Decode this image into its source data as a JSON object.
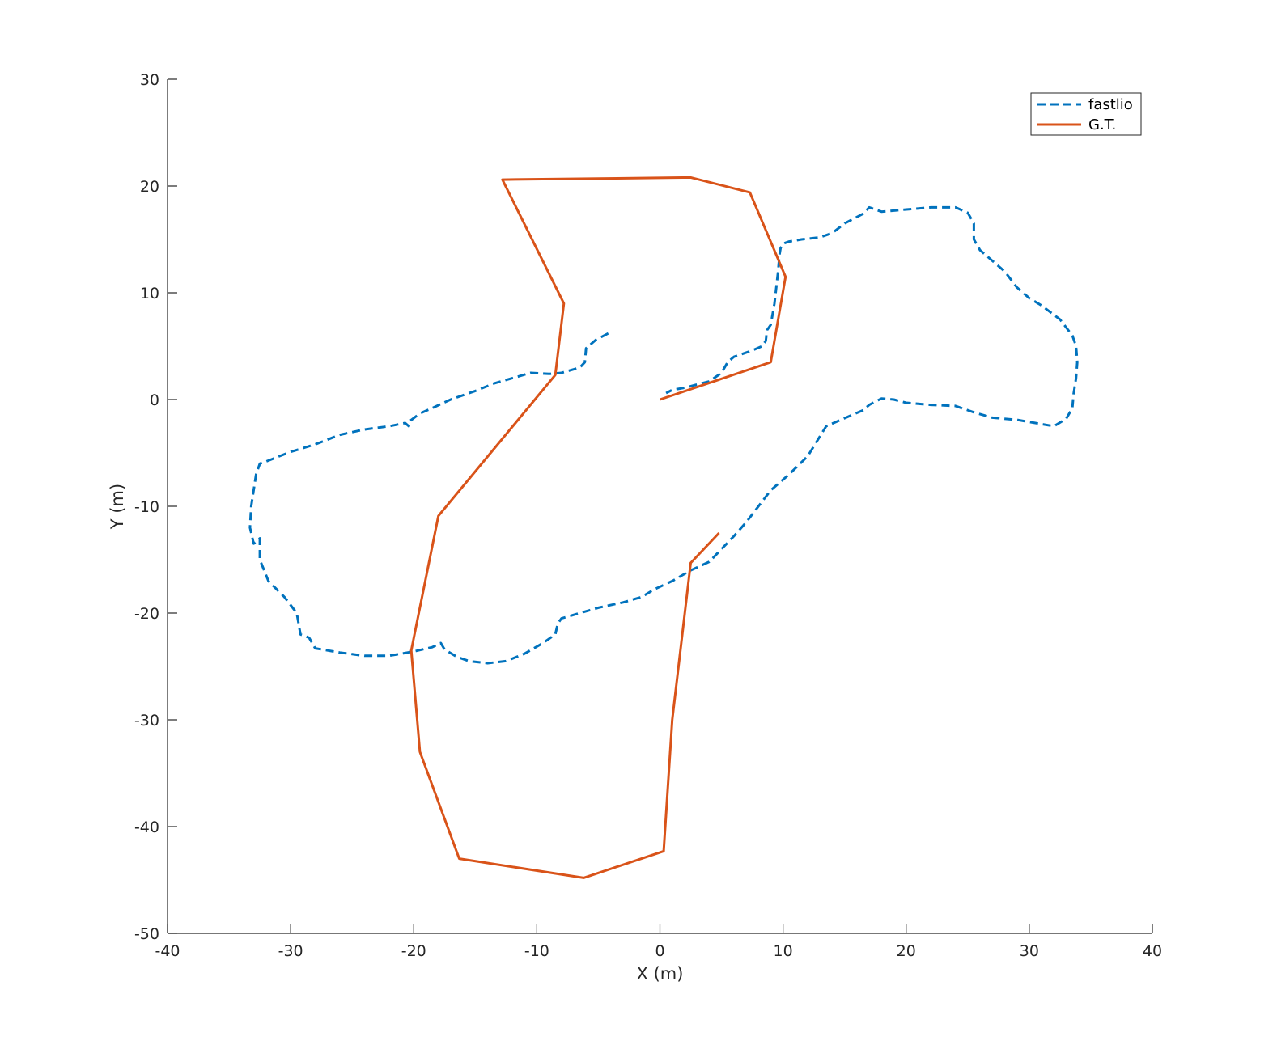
{
  "chart_data": {
    "type": "line",
    "title": "",
    "xlabel": "X (m)",
    "ylabel": "Y (m)",
    "xlim": [
      -40,
      40
    ],
    "ylim": [
      -50,
      30
    ],
    "xticks": [
      -40,
      -30,
      -20,
      -10,
      0,
      10,
      20,
      30,
      40
    ],
    "yticks": [
      -50,
      -40,
      -30,
      -20,
      -10,
      0,
      10,
      20,
      30
    ],
    "grid": false,
    "legend_position": "top-right",
    "series": [
      {
        "name": "fastlio",
        "style": "dashed",
        "color": "#0072BD",
        "points": [
          [
            -4.2,
            6.2
          ],
          [
            -5.2,
            5.6
          ],
          [
            -6.0,
            4.8
          ],
          [
            -6.1,
            3.5
          ],
          [
            -6.5,
            3.0
          ],
          [
            -8.0,
            2.5
          ],
          [
            -9.0,
            2.4
          ],
          [
            -10.5,
            2.5
          ],
          [
            -12.0,
            2.0
          ],
          [
            -13.5,
            1.5
          ],
          [
            -15.0,
            0.8
          ],
          [
            -17.0,
            0.0
          ],
          [
            -18.5,
            -0.8
          ],
          [
            -19.5,
            -1.3
          ],
          [
            -20.3,
            -2.0
          ],
          [
            -20.4,
            -2.5
          ],
          [
            -20.7,
            -2.2
          ],
          [
            -22.0,
            -2.5
          ],
          [
            -24.0,
            -2.8
          ],
          [
            -26.0,
            -3.3
          ],
          [
            -28.0,
            -4.2
          ],
          [
            -30.0,
            -4.9
          ],
          [
            -32.0,
            -5.8
          ],
          [
            -32.5,
            -6.0
          ],
          [
            -32.8,
            -7.0
          ],
          [
            -33.2,
            -10.0
          ],
          [
            -33.3,
            -12.0
          ],
          [
            -33.0,
            -13.5
          ],
          [
            -32.5,
            -13.0
          ],
          [
            -32.5,
            -15.0
          ],
          [
            -31.8,
            -17.0
          ],
          [
            -30.5,
            -18.5
          ],
          [
            -29.5,
            -20.0
          ],
          [
            -29.2,
            -22.0
          ],
          [
            -28.5,
            -22.3
          ],
          [
            -28.0,
            -23.3
          ],
          [
            -26.0,
            -23.7
          ],
          [
            -24.0,
            -24.0
          ],
          [
            -22.0,
            -24.0
          ],
          [
            -20.0,
            -23.6
          ],
          [
            -18.5,
            -23.2
          ],
          [
            -17.8,
            -22.8
          ],
          [
            -17.5,
            -23.4
          ],
          [
            -16.5,
            -24.1
          ],
          [
            -15.5,
            -24.5
          ],
          [
            -14.0,
            -24.7
          ],
          [
            -12.5,
            -24.5
          ],
          [
            -11.0,
            -23.8
          ],
          [
            -9.5,
            -22.8
          ],
          [
            -8.5,
            -22.0
          ],
          [
            -8.3,
            -21.0
          ],
          [
            -8.0,
            -20.5
          ],
          [
            -6.5,
            -20.0
          ],
          [
            -5.0,
            -19.5
          ],
          [
            -3.0,
            -19.0
          ],
          [
            -1.5,
            -18.5
          ],
          [
            -0.5,
            -17.8
          ],
          [
            1.0,
            -17.0
          ],
          [
            2.5,
            -16.0
          ],
          [
            4.0,
            -15.2
          ],
          [
            5.0,
            -14.0
          ],
          [
            6.0,
            -12.8
          ],
          [
            7.0,
            -11.5
          ],
          [
            8.0,
            -10.0
          ],
          [
            9.0,
            -8.5
          ],
          [
            10.5,
            -7.0
          ],
          [
            12.0,
            -5.3
          ],
          [
            13.5,
            -2.5
          ],
          [
            15.5,
            -1.5
          ],
          [
            16.5,
            -1.0
          ],
          [
            17.0,
            -0.5
          ],
          [
            18.0,
            0.1
          ],
          [
            19.0,
            0.0
          ],
          [
            20.0,
            -0.3
          ],
          [
            22.0,
            -0.5
          ],
          [
            24.0,
            -0.6
          ],
          [
            25.5,
            -1.2
          ],
          [
            27.0,
            -1.7
          ],
          [
            29.0,
            -1.9
          ],
          [
            30.5,
            -2.2
          ],
          [
            32.0,
            -2.5
          ],
          [
            33.0,
            -1.8
          ],
          [
            33.5,
            -0.8
          ],
          [
            33.6,
            0.5
          ],
          [
            33.8,
            2.0
          ],
          [
            33.9,
            3.5
          ],
          [
            33.8,
            5.0
          ],
          [
            33.5,
            6.0
          ],
          [
            32.5,
            7.5
          ],
          [
            31.0,
            8.8
          ],
          [
            30.0,
            9.5
          ],
          [
            29.0,
            10.5
          ],
          [
            28.0,
            12.0
          ],
          [
            27.0,
            13.0
          ],
          [
            26.0,
            14.0
          ],
          [
            25.5,
            15.0
          ],
          [
            25.5,
            16.5
          ],
          [
            25.0,
            17.5
          ],
          [
            24.0,
            18.0
          ],
          [
            22.0,
            18.0
          ],
          [
            20.0,
            17.8
          ],
          [
            18.0,
            17.6
          ],
          [
            17.0,
            18.0
          ],
          [
            16.5,
            17.4
          ],
          [
            15.0,
            16.5
          ],
          [
            14.0,
            15.6
          ],
          [
            13.0,
            15.2
          ],
          [
            11.5,
            15.0
          ],
          [
            10.5,
            14.8
          ],
          [
            10.0,
            14.6
          ],
          [
            9.8,
            14.2
          ],
          [
            9.7,
            13.5
          ],
          [
            9.6,
            12.0
          ],
          [
            9.5,
            11.0
          ],
          [
            9.3,
            9.0
          ],
          [
            9.0,
            7.0
          ],
          [
            8.7,
            6.5
          ],
          [
            8.6,
            5.5
          ],
          [
            8.3,
            5.0
          ],
          [
            7.5,
            4.6
          ],
          [
            6.0,
            4.0
          ],
          [
            5.5,
            3.5
          ],
          [
            5.0,
            2.5
          ],
          [
            4.0,
            1.7
          ],
          [
            3.0,
            1.4
          ],
          [
            2.0,
            1.1
          ],
          [
            1.0,
            0.9
          ],
          [
            0.5,
            0.6
          ]
        ]
      },
      {
        "name": "G.T.",
        "style": "solid",
        "color": "#D95319",
        "points": [
          [
            0.0,
            0.0
          ],
          [
            9.0,
            3.5
          ],
          [
            10.2,
            11.5
          ],
          [
            7.3,
            19.4
          ],
          [
            2.5,
            20.8
          ],
          [
            -12.8,
            20.6
          ],
          [
            -7.8,
            9.0
          ],
          [
            -8.5,
            2.3
          ],
          [
            -18.0,
            -10.9
          ],
          [
            -20.2,
            -23.5
          ],
          [
            -19.5,
            -33.0
          ],
          [
            -16.3,
            -43.0
          ],
          [
            -6.2,
            -44.8
          ],
          [
            0.3,
            -42.3
          ],
          [
            1.0,
            -30.0
          ],
          [
            2.5,
            -15.3
          ],
          [
            4.8,
            -12.5
          ]
        ]
      }
    ]
  }
}
